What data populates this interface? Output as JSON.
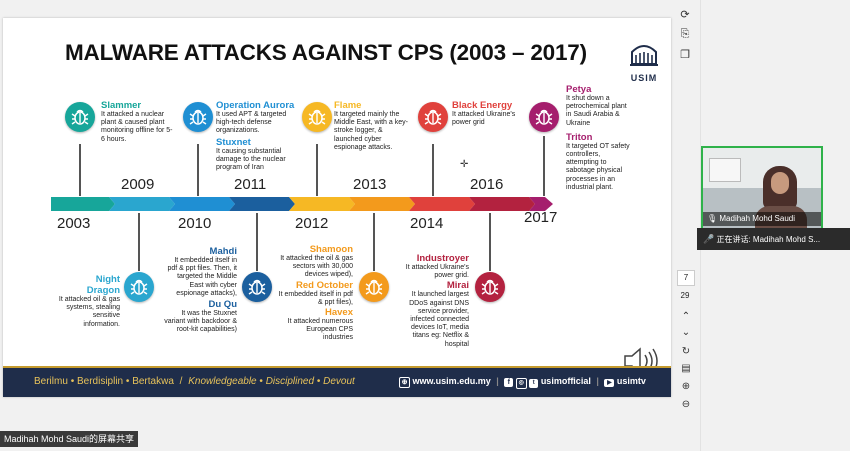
{
  "slide": {
    "title": "MALWARE ATTACKS AGAINST CPS (2003 – 2017)",
    "logo_text": "USIM",
    "years_below": [
      "2003",
      "2010",
      "2012",
      "2014",
      "2017"
    ],
    "years_above": [
      "2009",
      "2011",
      "2013",
      "2016"
    ],
    "events": {
      "slammer": {
        "name": "Slammer",
        "desc": "It attacked a nuclear plant & caused plant monitoring offline for 5-6 hours."
      },
      "aurora": {
        "name": "Operation Aurora",
        "desc": "It used APT & targeted high-tech defense organizations."
      },
      "stuxnet": {
        "name": "Stuxnet",
        "desc": "It causing substantial damage to the nuclear program of Iran"
      },
      "flame": {
        "name": "Flame",
        "desc": "It targeted mainly the Middle East, with a key-stroke logger, & launched cyber espionage attacks."
      },
      "blackenergy": {
        "name": "Black Energy",
        "desc": "It attacked Ukraine's power grid"
      },
      "petya": {
        "name": "Petya",
        "desc": "It shut down a petrochemical plant in Saudi Arabia & Ukraine"
      },
      "triton": {
        "name": "Triton",
        "desc": "It targeted OT safety controllers, attempting to sabotage physical processes in an industrial plant."
      },
      "nightdragon": {
        "name": "Night Dragon",
        "desc": "It attacked oil & gas systems, stealing sensitive information."
      },
      "mahdi": {
        "name": "Mahdi",
        "desc": "It embedded itself in pdf & ppt files. Then, it targeted the Middle East with cyber espionage attacks),"
      },
      "duqu": {
        "name": "Du Qu",
        "desc": "It was the Stuxnet variant with backdoor & root-kit capabilities)"
      },
      "shamoon": {
        "name": "Shamoon",
        "desc": "It attacked the oil & gas sectors with 30,000 devices wiped),"
      },
      "redoctober": {
        "name": "Red October",
        "desc": "It embedded itself in pdf & ppt files),"
      },
      "havex": {
        "name": "Havex",
        "desc": "It attacked numerous European CPS industries"
      },
      "industroyer": {
        "name": "Industroyer",
        "desc": "It attacked Ukraine's power grid."
      },
      "mirai": {
        "name": "Mirai",
        "desc": "It launched largest DDoS against DNS service provider, infected connected devices IoT, media titans eg: Netflix & hospital"
      }
    },
    "footer": {
      "motto_1": "Berilmu",
      "motto_2": "Berdisiplin",
      "motto_3": "Bertakwa",
      "separator": "•",
      "slash": "/",
      "tag_1": "Knowledgeable",
      "tag_2": "Disciplined",
      "tag_3": "Devout",
      "website": "www.usim.edu.my",
      "social": "usimofficial",
      "tv": "usimtv"
    }
  },
  "toolbar": {
    "page_number": "7",
    "page_total": "29"
  },
  "participant": {
    "name": "Madihah Mohd Saudi",
    "speaking_label": "正在讲话:",
    "speaking_name": "Madihah Mohd S..."
  },
  "share_caption": "Madihah Mohd Saudi的屏幕共享",
  "colors": {
    "teal": "#17a69a",
    "blue": "#1f8fd3",
    "orange": "#f39a1c",
    "red": "#e0413c",
    "crimson": "#b3223f",
    "purple": "#a51e6d",
    "navy": "#1f2d4a"
  }
}
